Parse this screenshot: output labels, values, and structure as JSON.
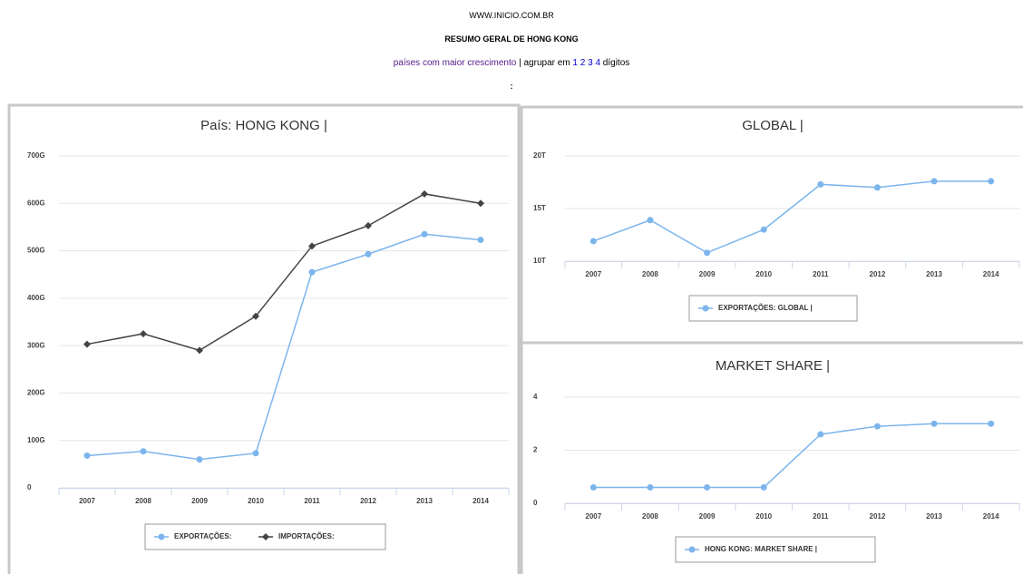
{
  "header": {
    "site": "WWW.INICIO.COM.BR",
    "title": "RESUMO GERAL DE HONG KONG",
    "nav": {
      "link": "países com maior crescimento",
      "separator": "|",
      "group_label": "agrupar em",
      "digits": [
        "1",
        "2",
        "3",
        "4"
      ],
      "suffix": "dígitos"
    },
    "colon": ":"
  },
  "chart_data": [
    {
      "type": "line",
      "title": "País: HONG KONG |",
      "categories": [
        "2007",
        "2008",
        "2009",
        "2010",
        "2011",
        "2012",
        "2013",
        "2014"
      ],
      "series": [
        {
          "name": "EXPORTAÇÕES:",
          "color": "#7cb5ec",
          "marker": "circle",
          "values": [
            68,
            77,
            60,
            73,
            455,
            493,
            535,
            523
          ]
        },
        {
          "name": "IMPORTAÇÕES:",
          "color": "#434348",
          "marker": "diamond",
          "values": [
            303,
            325,
            290,
            362,
            510,
            553,
            620,
            600
          ]
        }
      ],
      "ylim": [
        0,
        700
      ],
      "yticks": [
        0,
        {
          "value": 100,
          "label": "100G"
        },
        {
          "value": 200,
          "label": "200G"
        },
        {
          "value": 300,
          "label": "300G"
        },
        {
          "value": 400,
          "label": "400G"
        },
        {
          "value": 500,
          "label": "500G"
        },
        {
          "value": 600,
          "label": "600G"
        },
        {
          "value": 700,
          "label": "700G"
        }
      ],
      "grid": true,
      "legend": "bottom"
    },
    {
      "type": "line",
      "title": "GLOBAL |",
      "categories": [
        "2007",
        "2008",
        "2009",
        "2010",
        "2011",
        "2012",
        "2013",
        "2014"
      ],
      "series": [
        {
          "name": "EXPORTAÇÕES: GLOBAL |",
          "color": "#7cb5ec",
          "marker": "circle",
          "values": [
            11.9,
            13.9,
            10.8,
            13.0,
            17.3,
            17.0,
            17.6,
            17.6
          ]
        }
      ],
      "ylim": [
        10,
        20
      ],
      "yticks": [
        {
          "value": 10,
          "label": "10T"
        },
        {
          "value": 15,
          "label": "15T"
        },
        {
          "value": 20,
          "label": "20T"
        }
      ],
      "grid": true,
      "legend": "bottom"
    },
    {
      "type": "line",
      "title": "MARKET SHARE |",
      "categories": [
        "2007",
        "2008",
        "2009",
        "2010",
        "2011",
        "2012",
        "2013",
        "2014"
      ],
      "series": [
        {
          "name": "HONG KONG: MARKET SHARE |",
          "color": "#7cb5ec",
          "marker": "circle",
          "values": [
            0.6,
            0.6,
            0.6,
            0.6,
            2.6,
            2.9,
            3.0,
            3.0
          ]
        }
      ],
      "ylim": [
        0,
        4
      ],
      "yticks": [
        0,
        2,
        4
      ],
      "grid": true,
      "legend": "bottom"
    }
  ]
}
